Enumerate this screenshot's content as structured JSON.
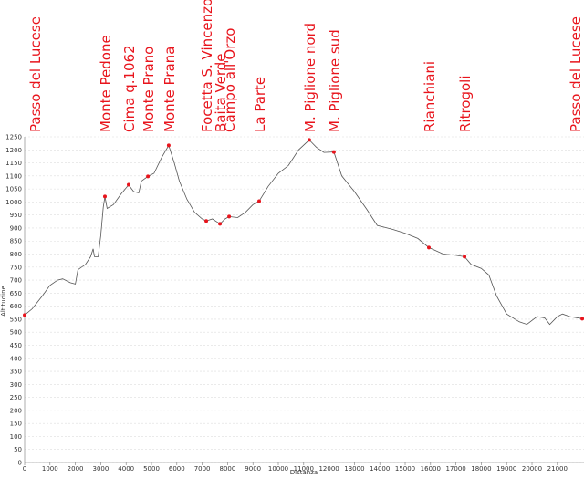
{
  "chart_data": {
    "type": "line",
    "xlabel": "Distanza",
    "ylabel": "Altitudine",
    "x": [
      0,
      300,
      700,
      1000,
      1300,
      1500,
      1800,
      2000,
      2100,
      2400,
      2600,
      2700,
      2750,
      2900,
      3000,
      3100,
      3165,
      3250,
      3500,
      3800,
      4100,
      4300,
      4500,
      4600,
      4860,
      5100,
      5400,
      5680,
      5900,
      6100,
      6400,
      6700,
      7000,
      7160,
      7400,
      7700,
      7900,
      8060,
      8400,
      8700,
      9000,
      9245,
      9600,
      10000,
      10400,
      10800,
      11220,
      11500,
      11800,
      12190,
      12500,
      13000,
      13500,
      13900,
      14500,
      15000,
      15500,
      15935,
      16500,
      17000,
      17340,
      17600,
      18000,
      18300,
      18600,
      19000,
      19500,
      19800,
      20200,
      20500,
      20700,
      21000,
      21200,
      21500,
      21980
    ],
    "values": [
      566,
      590,
      640,
      680,
      700,
      705,
      690,
      685,
      740,
      760,
      790,
      820,
      790,
      790,
      870,
      980,
      1021,
      975,
      990,
      1030,
      1066,
      1040,
      1035,
      1080,
      1098,
      1110,
      1170,
      1217,
      1150,
      1080,
      1010,
      960,
      935,
      927,
      935,
      916,
      935,
      944,
      940,
      960,
      990,
      1003,
      1060,
      1110,
      1140,
      1200,
      1238,
      1210,
      1190,
      1192,
      1100,
      1040,
      970,
      910,
      895,
      880,
      860,
      825,
      800,
      795,
      790,
      760,
      745,
      720,
      640,
      570,
      540,
      530,
      560,
      555,
      530,
      560,
      570,
      560,
      552
    ],
    "color": "#555555",
    "waypoints": {
      "color": "#e8141c",
      "labels": [
        "Passo del Lucese",
        "Monte Pedone",
        "Cima q.1062",
        "Monte Prano",
        "Monte Prana",
        "Focetta S. Vincenzo",
        "Baita Verde",
        "Campo all'Orzo",
        "La Parte",
        "M. Piglione nord",
        "M. Piglione sud",
        "Rianchiani",
        "Ritrogoli",
        "Passo del Lucese"
      ],
      "x": [
        0,
        3165,
        4100,
        4860,
        5680,
        7160,
        7700,
        8060,
        9245,
        11220,
        12190,
        15935,
        17340,
        21980
      ],
      "values": [
        566,
        1021,
        1066,
        1098,
        1217,
        927,
        916,
        944,
        1003,
        1238,
        1192,
        825,
        790,
        552
      ]
    },
    "xlim": [
      0,
      22050
    ],
    "ylim": [
      0,
      1250
    ],
    "xticks": [
      0,
      1000,
      2000,
      3000,
      4000,
      5000,
      6000,
      7000,
      8000,
      9000,
      10000,
      11000,
      12000,
      13000,
      14000,
      15000,
      16000,
      17000,
      18000,
      19000,
      20000,
      21000
    ],
    "yticks": [
      0,
      50,
      100,
      150,
      200,
      250,
      300,
      350,
      400,
      450,
      500,
      550,
      600,
      650,
      700,
      750,
      800,
      850,
      900,
      950,
      1000,
      1050,
      1100,
      1150,
      1200,
      1250
    ],
    "grid": true
  }
}
